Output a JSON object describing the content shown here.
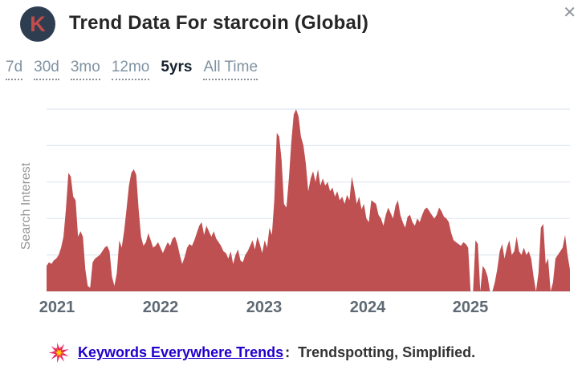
{
  "window": {
    "close_glyph": "✕"
  },
  "header": {
    "logo_letter": "K",
    "title": "Trend Data For starcoin (Global)"
  },
  "tabs": {
    "items": [
      {
        "label": "7d",
        "selected": false
      },
      {
        "label": "30d",
        "selected": false
      },
      {
        "label": "3mo",
        "selected": false
      },
      {
        "label": "12mo",
        "selected": false
      },
      {
        "label": "5yrs",
        "selected": true
      },
      {
        "label": "All Time",
        "selected": false
      }
    ]
  },
  "colors": {
    "area_fill": "#bf5051",
    "grid_line": "#dfe7f0",
    "logo_bg": "#2e3d4f",
    "logo_letter": "#c24b4c",
    "link_blue": "#2200cc"
  },
  "chart_data": {
    "type": "area",
    "title": "Trend Data For starcoin (Global)",
    "ylabel": "Search Interest",
    "xlabel": "",
    "ylim": [
      0,
      100
    ],
    "grid": true,
    "legend": "none",
    "x_ticks": [
      "2021",
      "2022",
      "2023",
      "2024",
      "2025"
    ],
    "x_unit": "weekly search interest, Jan 2021 – Dec 2025",
    "values": [
      14,
      16,
      15,
      17,
      18,
      20,
      24,
      30,
      45,
      65,
      63,
      52,
      50,
      30,
      33,
      30,
      12,
      3,
      2,
      16,
      18,
      19,
      20,
      22,
      24,
      25,
      22,
      8,
      3,
      10,
      28,
      24,
      33,
      45,
      58,
      65,
      67,
      64,
      45,
      30,
      25,
      27,
      32,
      28,
      24,
      25,
      27,
      24,
      21,
      24,
      27,
      25,
      29,
      30,
      26,
      20,
      15,
      19,
      24,
      26,
      25,
      28,
      32,
      36,
      38,
      31,
      36,
      33,
      30,
      33,
      29,
      27,
      25,
      22,
      21,
      18,
      22,
      15,
      20,
      23,
      17,
      16,
      20,
      22,
      25,
      28,
      23,
      30,
      26,
      21,
      28,
      24,
      35,
      31,
      50,
      87,
      85,
      72,
      48,
      46,
      62,
      82,
      97,
      100,
      96,
      85,
      80,
      70,
      55,
      62,
      66,
      60,
      67,
      58,
      62,
      58,
      60,
      55,
      57,
      52,
      55,
      50,
      52,
      48,
      53,
      50,
      63,
      56,
      48,
      52,
      45,
      48,
      40,
      38,
      50,
      49,
      48,
      42,
      40,
      36,
      42,
      46,
      43,
      40,
      47,
      50,
      42,
      38,
      35,
      41,
      42,
      38,
      36,
      40,
      38,
      42,
      45,
      46,
      44,
      42,
      40,
      42,
      46,
      44,
      41,
      40,
      38,
      32,
      28,
      27,
      26,
      25,
      27,
      26,
      24,
      0,
      0,
      28,
      26,
      0,
      14,
      12,
      8,
      0,
      0,
      5,
      12,
      22,
      26,
      18,
      24,
      28,
      20,
      22,
      30,
      22,
      20,
      24,
      20,
      22,
      18,
      8,
      0,
      10,
      35,
      37,
      15,
      18,
      0,
      5,
      18,
      20,
      22,
      24,
      31,
      20,
      12
    ]
  },
  "footer": {
    "link_text": "Keywords Everywhere Trends",
    "separator": ":",
    "tagline": "Trendspotting, Simplified."
  }
}
